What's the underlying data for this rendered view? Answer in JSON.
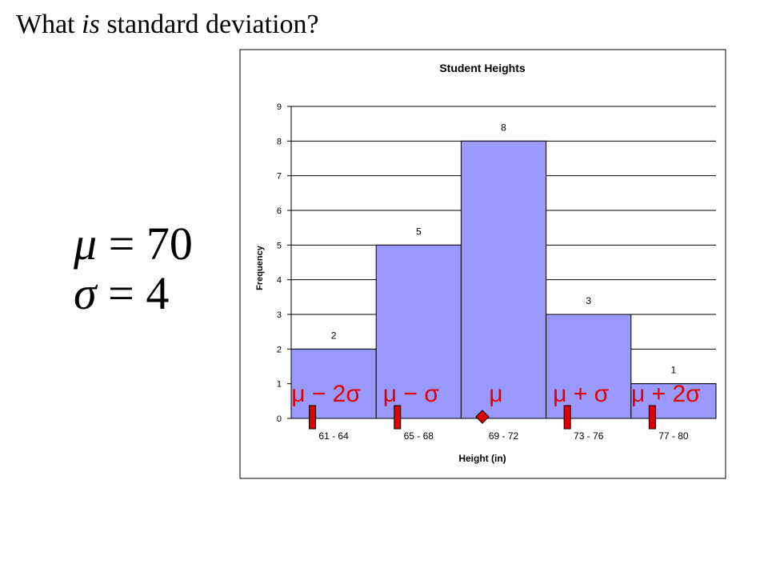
{
  "slide": {
    "title_start": "What ",
    "title_emphasis": "is",
    "title_end": " standard deviation?",
    "mean_symbol": "μ",
    "mean_value": "= 70",
    "sd_symbol": "σ",
    "sd_value": "= 4"
  },
  "colors": {
    "bar_fill": "#9999FF",
    "bar_stroke": "#000000",
    "marker_fill": "#E00000",
    "marker_text": "#E00000",
    "grid": "#000000"
  },
  "chart_data": {
    "type": "bar",
    "title": "Student Heights",
    "xlabel": "Height (in)",
    "ylabel": "Frequency",
    "categories": [
      "61 - 64",
      "65 - 68",
      "69 - 72",
      "73 - 76",
      "77 - 80"
    ],
    "values": [
      2,
      5,
      8,
      3,
      1
    ],
    "ylim": [
      0,
      9
    ],
    "yticks": [
      0,
      1,
      2,
      3,
      4,
      5,
      6,
      7,
      8,
      9
    ],
    "grid": true,
    "legend": "none",
    "bar_gap": 0,
    "markers": [
      {
        "label": "μ − 2σ",
        "value": 62,
        "shape": "rect"
      },
      {
        "label": "μ − σ",
        "value": 66,
        "shape": "rect"
      },
      {
        "label": "μ",
        "value": 70,
        "shape": "diamond"
      },
      {
        "label": "μ + σ",
        "value": 74,
        "shape": "rect"
      },
      {
        "label": "μ + 2σ",
        "value": 78,
        "shape": "rect"
      }
    ]
  }
}
